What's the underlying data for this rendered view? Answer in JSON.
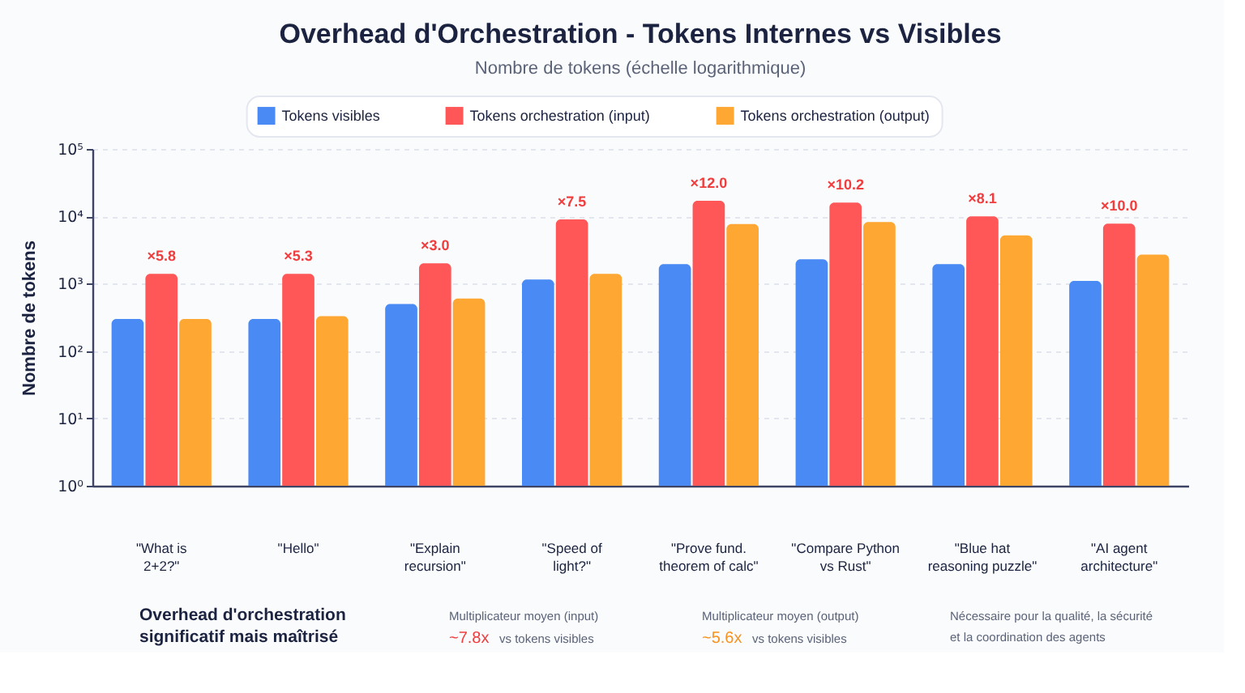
{
  "chart_data": {
    "type": "bar",
    "title": "Overhead d'Orchestration - Tokens Internes vs Visibles",
    "subtitle": "Nombre de tokens (échelle logarithmique)",
    "ylabel": "Nombre de tokens",
    "categories": [
      "\"What is 2+2?\"",
      "\"Hello\"",
      "\"Explain recursion\"",
      "\"Speed of light?\"",
      "\"Prove fund. theorem of calc\"",
      "\"Compare Python vs Rust\"",
      "\"Blue hat reasoning puzzle\"",
      "\"AI agent architecture\""
    ],
    "series": [
      {
        "name": "Tokens visibles",
        "color": "#4a8af4",
        "values": [
          300,
          300,
          500,
          1150,
          1950,
          2300,
          1950,
          1100
        ]
      },
      {
        "name": "Tokens orchestration (input)",
        "color": "#ff5757",
        "values": [
          1400,
          1400,
          2000,
          9000,
          17000,
          16000,
          10000,
          7800
        ]
      },
      {
        "name": "Tokens orchestration (output)",
        "color": "#ffa733",
        "values": [
          300,
          330,
          600,
          1400,
          7700,
          8200,
          5200,
          2700
        ]
      }
    ],
    "log": true,
    "ylim": [
      1,
      100000
    ],
    "yticks": [
      {
        "value": 1,
        "label": "10⁰"
      },
      {
        "value": 10,
        "label": "10¹"
      },
      {
        "value": 100,
        "label": "10²"
      },
      {
        "value": 1000,
        "label": "10³"
      },
      {
        "value": 10000,
        "label": "10⁴"
      },
      {
        "value": 100000,
        "label": "10⁵"
      }
    ],
    "grid": "y",
    "legend": "top",
    "annotations": [
      {
        "text": "×5.8",
        "x": "\"What is 2+2?\"",
        "y": 1400
      },
      {
        "text": "×5.3",
        "x": "\"Hello\"",
        "y": 1400
      },
      {
        "text": "×3.0",
        "x": "\"Explain recursion\"",
        "y": 2000
      },
      {
        "text": "×7.5",
        "x": "\"Speed of light?\"",
        "y": 9000
      },
      {
        "text": "×12.0",
        "x": "\"Prove fund. theorem of calc\"",
        "y": 17000
      },
      {
        "text": "×10.2",
        "x": "\"Compare Python vs Rust\"",
        "y": 16000
      },
      {
        "text": "×8.1",
        "x": "\"Blue hat reasoning puzzle\"",
        "y": 10000
      },
      {
        "text": "×10.0",
        "x": "\"AI agent architecture\"",
        "y": 7800
      },
      "Overhead d'orchestration significatif mais maîtrisé",
      "Multiplicateur moyen (input)",
      "~7.8x",
      "vs tokens visibles",
      "Multiplicateur moyen (output)",
      "~5.6x",
      "vs tokens visibles",
      "Nécessaire pour la qualité, la sécurité et la coordination des agents"
    ]
  }
}
